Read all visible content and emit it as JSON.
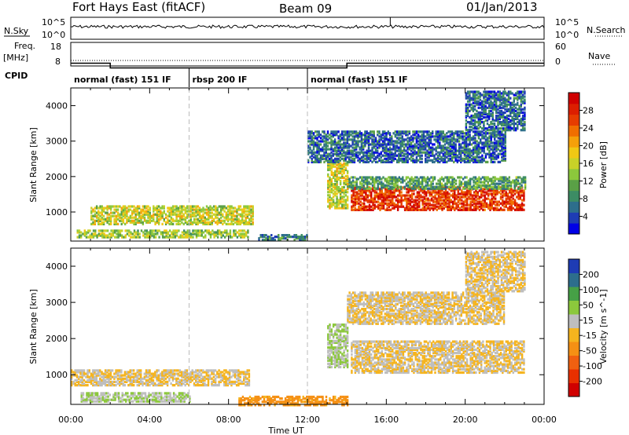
{
  "header": {
    "site": "Fort Hays East (fitACF)",
    "beam": "Beam 09",
    "date": "01/Jan/2013"
  },
  "noise_panel": {
    "left_label": "N.Sky",
    "right_label": "N.Search",
    "left_ticks": [
      "10^5",
      "10^0"
    ],
    "right_ticks": [
      "10^5",
      "10^0"
    ]
  },
  "freq_panel": {
    "left_label_top": "Freq.",
    "left_label_bottom": "[MHz]",
    "left_ticks": [
      "18",
      "8"
    ],
    "right_label": "Nave",
    "right_ticks": [
      "60",
      "0"
    ],
    "freq_steps_mhz": [
      {
        "t": 0,
        "v": 12.5
      },
      {
        "t": 2,
        "v": 10.5
      },
      {
        "t": 14,
        "v": 12.5
      },
      {
        "t": 24,
        "v": 12.5
      }
    ],
    "nave_level": 14
  },
  "cpid": {
    "label": "CPID",
    "segments": [
      {
        "start": 0,
        "end": 6,
        "label": "normal (fast) 151 IF"
      },
      {
        "start": 6,
        "end": 12,
        "label": "rbsp 200 IF"
      },
      {
        "start": 12,
        "end": 24,
        "label": "normal (fast) 151 IF"
      }
    ]
  },
  "x_axis": {
    "label": "Time UT",
    "ticks": [
      "00:00",
      "04:00",
      "08:00",
      "12:00",
      "16:00",
      "20:00",
      "00:00"
    ],
    "range_hours": [
      0,
      24
    ]
  },
  "chart_data": [
    {
      "type": "heatmap",
      "quantity": "Power",
      "ylabel": "Slant Range [km]",
      "ylim": [
        180,
        4500
      ],
      "yticks": [
        "1000",
        "2000",
        "3000",
        "4000"
      ],
      "colorbar": {
        "label": "Power [dB]",
        "ticks": [
          "28",
          "24",
          "20",
          "16",
          "12",
          "8",
          "4"
        ],
        "range": [
          0,
          32
        ],
        "colors": [
          "#0000e6",
          "#1e3cb4",
          "#2d6e8c",
          "#3c8c64",
          "#5aa046",
          "#8cc83c",
          "#c8d228",
          "#f0c814",
          "#f5a00a",
          "#f06e00",
          "#e63c00",
          "#dc1e00",
          "#d00000"
        ]
      },
      "regions": [
        {
          "t": [
            1.0,
            9.2
          ],
          "r": [
            650,
            1150
          ],
          "v": 16
        },
        {
          "t": [
            0.3,
            9.0
          ],
          "r": [
            280,
            480
          ],
          "v": 14
        },
        {
          "t": [
            14.2,
            23.0
          ],
          "r": [
            1050,
            1700
          ],
          "v": 27
        },
        {
          "t": [
            14.0,
            23.0
          ],
          "r": [
            1650,
            2000
          ],
          "v": 10
        },
        {
          "t": [
            13.0,
            14.0
          ],
          "r": [
            1100,
            2400
          ],
          "v": 16
        },
        {
          "t": [
            12.0,
            22.0
          ],
          "r": [
            2400,
            3300
          ],
          "v": 6
        },
        {
          "t": [
            20.0,
            23.0
          ],
          "r": [
            3300,
            4400
          ],
          "v": 6
        },
        {
          "t": [
            9.5,
            12.0
          ],
          "r": [
            200,
            350
          ],
          "v": 8
        }
      ]
    },
    {
      "type": "heatmap",
      "quantity": "Velocity",
      "ylabel": "Slant Range [km]",
      "ylim": [
        180,
        4500
      ],
      "yticks": [
        "1000",
        "2000",
        "3000",
        "4000"
      ],
      "colorbar": {
        "label": "Velocity [m s^-1]",
        "ticks": [
          "200",
          "100",
          "50",
          "15",
          "-15",
          "-50",
          "-100",
          "-200"
        ],
        "range": [
          -250,
          250
        ],
        "colors": [
          "#d00000",
          "#e83000",
          "#f06010",
          "#f59014",
          "#f5b41e",
          "#bebebe",
          "#8cc83c",
          "#46a046",
          "#2d6e8c",
          "#1e3cb4"
        ]
      },
      "regions": [
        {
          "t": [
            0.0,
            9.0
          ],
          "r": [
            700,
            1150
          ],
          "v": 0
        },
        {
          "t": [
            0.5,
            6.0
          ],
          "r": [
            250,
            500
          ],
          "v": 50
        },
        {
          "t": [
            14.2,
            23.0
          ],
          "r": [
            1050,
            1950
          ],
          "v": 0
        },
        {
          "t": [
            8.5,
            14.0
          ],
          "r": [
            150,
            380
          ],
          "v": -70
        },
        {
          "t": [
            13.0,
            14.0
          ],
          "r": [
            1200,
            2400
          ],
          "v": 50
        },
        {
          "t": [
            14.0,
            22.0
          ],
          "r": [
            2400,
            3300
          ],
          "v": 0
        },
        {
          "t": [
            20.0,
            23.0
          ],
          "r": [
            3300,
            4400
          ],
          "v": 0
        }
      ]
    }
  ]
}
